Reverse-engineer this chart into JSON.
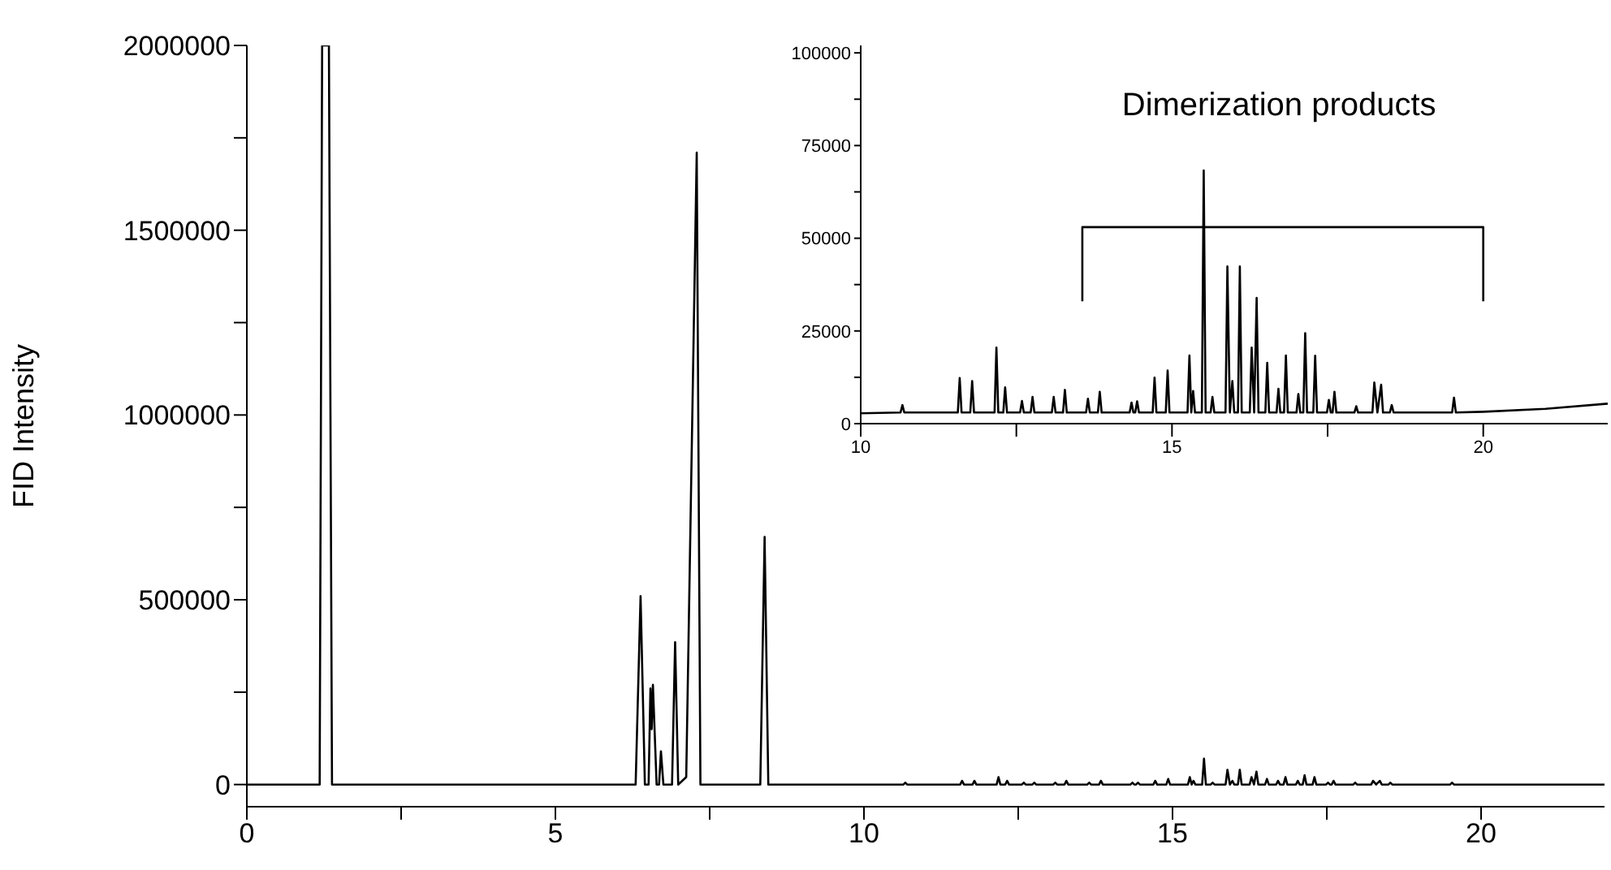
{
  "chart_data": [
    {
      "type": "line",
      "ylabel": "FID Intensity",
      "color": "#000000",
      "xlim": [
        0,
        22
      ],
      "ylim": [
        -60000,
        2000000
      ],
      "xticks": [
        0,
        {
          "value": 2.5,
          "label": null
        },
        5,
        {
          "value": 7.5,
          "label": null
        },
        10,
        {
          "value": 12.5,
          "label": null
        },
        15,
        {
          "value": 17.5,
          "label": null
        },
        20
      ],
      "yticks": [
        0,
        {
          "value": 250000,
          "label": null
        },
        500000,
        {
          "value": 750000,
          "label": null
        },
        1000000,
        {
          "value": 1250000,
          "label": null
        },
        1500000,
        {
          "value": 1750000,
          "label": null
        },
        2000000
      ],
      "x": [
        0,
        1.18,
        1.22,
        1.33,
        1.38,
        6.3,
        6.38,
        6.45,
        6.51,
        6.54,
        6.56,
        6.58,
        6.64,
        6.68,
        6.71,
        6.75,
        6.89,
        6.94,
        6.99,
        7.12,
        7.29,
        7.35,
        8.32,
        8.39,
        8.45,
        10.64,
        10.67,
        10.7,
        11.56,
        11.59,
        11.62,
        11.76,
        11.79,
        11.82,
        12.15,
        12.18,
        12.21,
        12.29,
        12.32,
        12.35,
        12.56,
        12.59,
        12.62,
        12.73,
        12.76,
        12.79,
        13.07,
        13.1,
        13.13,
        13.25,
        13.28,
        13.31,
        13.62,
        13.65,
        13.68,
        13.81,
        13.84,
        13.87,
        14.32,
        14.35,
        14.38,
        14.41,
        14.44,
        14.47,
        14.69,
        14.72,
        14.75,
        14.9,
        14.93,
        14.96,
        15.25,
        15.28,
        15.31,
        15.34,
        15.37,
        15.48,
        15.51,
        15.54,
        15.62,
        15.65,
        15.68,
        15.86,
        15.89,
        15.93,
        15.97,
        16.0,
        16.06,
        16.09,
        16.12,
        16.25,
        16.28,
        16.32,
        16.36,
        16.39,
        16.5,
        16.53,
        16.56,
        16.68,
        16.71,
        16.74,
        16.8,
        16.83,
        16.86,
        17.0,
        17.03,
        17.06,
        17.11,
        17.14,
        17.17,
        17.27,
        17.3,
        17.33,
        17.49,
        17.52,
        17.55,
        17.58,
        17.61,
        17.64,
        17.93,
        17.96,
        17.99,
        18.22,
        18.25,
        18.3,
        18.36,
        18.39,
        18.5,
        18.53,
        18.56,
        19.5,
        19.53,
        19.56,
        22
      ],
      "values": [
        0,
        0,
        2000000,
        2000000,
        0,
        0,
        510000,
        0,
        0,
        260000,
        150000,
        270000,
        0,
        0,
        90000,
        0,
        0,
        385000,
        0,
        20000,
        1710000,
        0,
        0,
        670000,
        0,
        0,
        5000,
        0,
        0,
        10000,
        0,
        0,
        10000,
        0,
        0,
        20000,
        0,
        0,
        10000,
        0,
        0,
        5000,
        0,
        0,
        5000,
        0,
        0,
        5000,
        0,
        0,
        10000,
        0,
        0,
        5000,
        0,
        0,
        10000,
        0,
        0,
        5000,
        0,
        0,
        5000,
        0,
        0,
        10000,
        0,
        0,
        15000,
        0,
        0,
        20000,
        0,
        10000,
        0,
        0,
        70000,
        0,
        0,
        5000,
        0,
        0,
        40000,
        0,
        10000,
        0,
        0,
        40000,
        0,
        0,
        20000,
        0,
        35000,
        0,
        0,
        15000,
        0,
        0,
        10000,
        0,
        0,
        20000,
        0,
        0,
        10000,
        0,
        0,
        25000,
        0,
        0,
        20000,
        0,
        0,
        5000,
        0,
        0,
        10000,
        0,
        0,
        5000,
        0,
        0,
        10000,
        0,
        10000,
        0,
        0,
        5000,
        0,
        0,
        5000,
        0,
        0
      ]
    },
    {
      "type": "line",
      "annotations": [
        "Dimerization products"
      ],
      "xlim": [
        10,
        22
      ],
      "ylim": [
        0,
        102000
      ],
      "xticks": [
        10,
        {
          "value": 12.5,
          "label": null
        },
        15,
        {
          "value": 17.5,
          "label": null
        },
        20
      ],
      "yticks": [
        0,
        {
          "value": 12500,
          "label": null
        },
        25000,
        {
          "value": 37500,
          "label": null
        },
        50000,
        {
          "value": 62500,
          "label": null
        },
        75000,
        {
          "value": 87500,
          "label": null
        },
        100000
      ],
      "series": [
        {
          "color": "#000000",
          "x": [
            10,
            10.64,
            10.67,
            10.7,
            11.56,
            11.59,
            11.62,
            11.76,
            11.79,
            11.82,
            12.15,
            12.18,
            12.21,
            12.29,
            12.32,
            12.35,
            12.56,
            12.59,
            12.62,
            12.73,
            12.76,
            12.79,
            13.07,
            13.1,
            13.13,
            13.25,
            13.28,
            13.31,
            13.62,
            13.65,
            13.68,
            13.81,
            13.84,
            13.87,
            14.32,
            14.35,
            14.38,
            14.41,
            14.44,
            14.47,
            14.69,
            14.72,
            14.75,
            14.9,
            14.93,
            14.96,
            15.25,
            15.28,
            15.31,
            15.34,
            15.37,
            15.48,
            15.51,
            15.54,
            15.62,
            15.65,
            15.68,
            15.86,
            15.89,
            15.93,
            15.97,
            16.0,
            16.06,
            16.09,
            16.12,
            16.25,
            16.28,
            16.32,
            16.36,
            16.39,
            16.5,
            16.53,
            16.56,
            16.68,
            16.71,
            16.74,
            16.8,
            16.83,
            16.86,
            17.0,
            17.03,
            17.06,
            17.11,
            17.14,
            17.17,
            17.27,
            17.3,
            17.33,
            17.49,
            17.52,
            17.55,
            17.58,
            17.61,
            17.64,
            17.93,
            17.96,
            17.99,
            18.22,
            18.25,
            18.3,
            18.36,
            18.39,
            18.5,
            18.53,
            18.56,
            19.5,
            19.53,
            19.56,
            20,
            21,
            22
          ],
          "values": [
            2800,
            3000,
            5000,
            3000,
            3000,
            12300,
            3000,
            3000,
            11500,
            3000,
            3000,
            20500,
            3000,
            3000,
            9800,
            3000,
            3000,
            6100,
            3000,
            3000,
            7200,
            3000,
            3000,
            7200,
            3000,
            3000,
            9100,
            3000,
            3000,
            6700,
            3000,
            3000,
            8600,
            3000,
            3000,
            5700,
            3000,
            3000,
            6000,
            3000,
            3000,
            12400,
            3000,
            3000,
            14300,
            3000,
            3000,
            18400,
            3000,
            8800,
            3000,
            3000,
            68300,
            3000,
            3000,
            7200,
            3000,
            3000,
            42400,
            3000,
            11500,
            3000,
            3000,
            42400,
            3000,
            3000,
            20500,
            3000,
            33900,
            3000,
            3000,
            16400,
            3000,
            3000,
            9400,
            3000,
            3000,
            18400,
            3000,
            3000,
            8000,
            3000,
            3000,
            24400,
            3000,
            3000,
            18300,
            3000,
            3000,
            6400,
            3000,
            3000,
            8600,
            3000,
            3000,
            4700,
            3000,
            3000,
            11100,
            3000,
            10500,
            3000,
            3000,
            5000,
            3000,
            3000,
            7000,
            3000,
            3200,
            4000,
            5400
          ]
        },
        {
          "type": "line",
          "color": "#000000",
          "x": [
            13.56,
            13.56,
            20,
            20
          ],
          "values": [
            33000,
            53000,
            53000,
            33000
          ]
        }
      ]
    }
  ]
}
